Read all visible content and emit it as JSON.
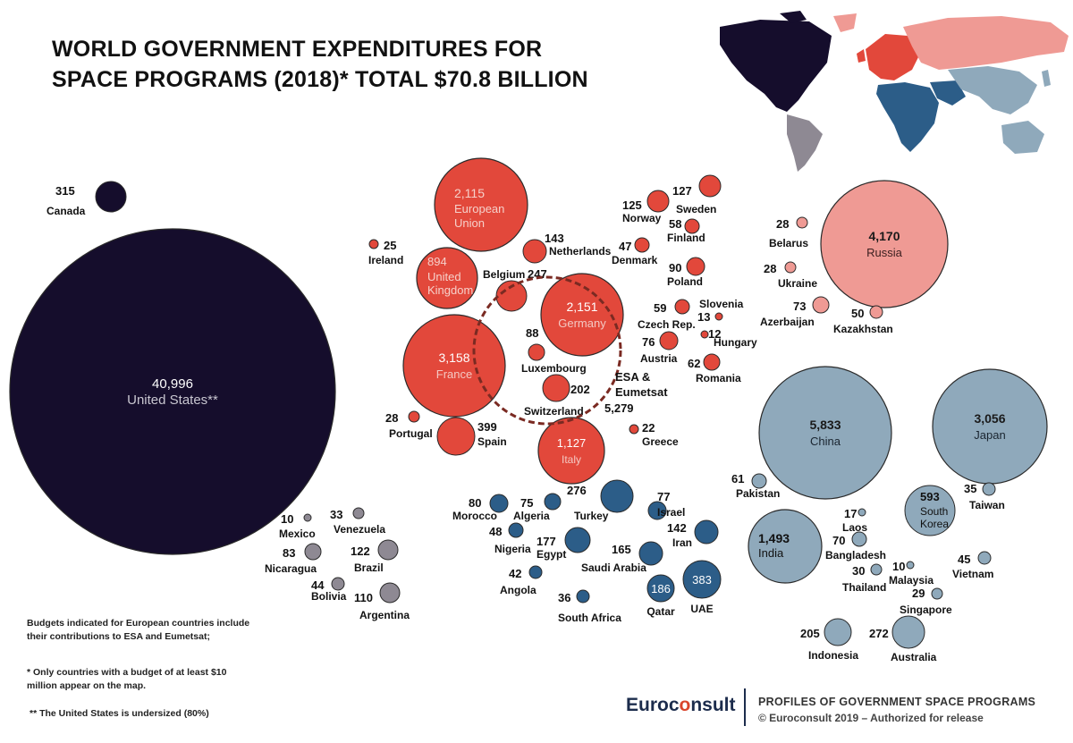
{
  "title_line1": "WORLD GOVERNMENT EXPENDITURES FOR",
  "title_line2": "SPACE PROGRAMS (2018)* TOTAL $70.8 BILLION",
  "colors": {
    "north_america": "#150d2c",
    "europe": "#e2483b",
    "russia_cis": "#ef9a94",
    "middle_east_africa": "#2c5d88",
    "asia_pacific": "#8fa9bb",
    "latin_america": "#8e8993"
  },
  "esa_group": {
    "label_line1": "ESA &",
    "label_line2": "Eumetsat",
    "value": "5,279"
  },
  "chart_data": {
    "type": "bubble",
    "units": "US$ million",
    "title": "WORLD GOVERNMENT EXPENDITURES FOR SPACE PROGRAMS (2018)* TOTAL $70.8 BILLION",
    "points": [
      {
        "name": "United States**",
        "value": 40996,
        "label": "40,996",
        "region": "north_america"
      },
      {
        "name": "Canada",
        "value": 315,
        "label": "315",
        "region": "north_america"
      },
      {
        "name": "European Union",
        "value": 2115,
        "label": "2,115",
        "region": "europe"
      },
      {
        "name": "United Kingdom",
        "value": 894,
        "label": "894",
        "region": "europe"
      },
      {
        "name": "Ireland",
        "value": 25,
        "label": "25",
        "region": "europe"
      },
      {
        "name": "Belgium",
        "value": 247,
        "label": "247",
        "region": "europe"
      },
      {
        "name": "Netherlands",
        "value": 143,
        "label": "143",
        "region": "europe"
      },
      {
        "name": "Germany",
        "value": 2151,
        "label": "2,151",
        "region": "europe"
      },
      {
        "name": "France",
        "value": 3158,
        "label": "3,158",
        "region": "europe"
      },
      {
        "name": "Luxembourg",
        "value": 88,
        "label": "88",
        "region": "europe"
      },
      {
        "name": "Switzerland",
        "value": 202,
        "label": "202",
        "region": "europe"
      },
      {
        "name": "Portugal",
        "value": 28,
        "label": "28",
        "region": "europe"
      },
      {
        "name": "Spain",
        "value": 399,
        "label": "399",
        "region": "europe"
      },
      {
        "name": "Italy",
        "value": 1127,
        "label": "1,127",
        "region": "europe"
      },
      {
        "name": "Greece",
        "value": 22,
        "label": "22",
        "region": "europe"
      },
      {
        "name": "Norway",
        "value": 125,
        "label": "125",
        "region": "europe"
      },
      {
        "name": "Sweden",
        "value": 127,
        "label": "127",
        "region": "europe"
      },
      {
        "name": "Finland",
        "value": 58,
        "label": "58",
        "region": "europe"
      },
      {
        "name": "Denmark",
        "value": 47,
        "label": "47",
        "region": "europe"
      },
      {
        "name": "Poland",
        "value": 90,
        "label": "90",
        "region": "europe"
      },
      {
        "name": "Czech Rep.",
        "value": 59,
        "label": "59",
        "region": "europe"
      },
      {
        "name": "Slovenia",
        "value": 13,
        "label": "13",
        "region": "europe"
      },
      {
        "name": "Hungary",
        "value": 12,
        "label": "12",
        "region": "europe"
      },
      {
        "name": "Austria",
        "value": 76,
        "label": "76",
        "region": "europe"
      },
      {
        "name": "Romania",
        "value": 62,
        "label": "62",
        "region": "europe"
      },
      {
        "name": "Russia",
        "value": 4170,
        "label": "4,170",
        "region": "russia_cis"
      },
      {
        "name": "Belarus",
        "value": 28,
        "label": "28",
        "region": "russia_cis"
      },
      {
        "name": "Ukraine",
        "value": 28,
        "label": "28",
        "region": "russia_cis"
      },
      {
        "name": "Azerbaijan",
        "value": 73,
        "label": "73",
        "region": "russia_cis"
      },
      {
        "name": "Kazakhstan",
        "value": 50,
        "label": "50",
        "region": "russia_cis"
      },
      {
        "name": "China",
        "value": 5833,
        "label": "5,833",
        "region": "asia_pacific"
      },
      {
        "name": "Japan",
        "value": 3056,
        "label": "3,056",
        "region": "asia_pacific"
      },
      {
        "name": "Pakistan",
        "value": 61,
        "label": "61",
        "region": "asia_pacific"
      },
      {
        "name": "South Korea",
        "value": 593,
        "label": "593",
        "region": "asia_pacific"
      },
      {
        "name": "Taiwan",
        "value": 35,
        "label": "35",
        "region": "asia_pacific"
      },
      {
        "name": "India",
        "value": 1493,
        "label": "1,493",
        "region": "asia_pacific"
      },
      {
        "name": "Laos",
        "value": 17,
        "label": "17",
        "region": "asia_pacific"
      },
      {
        "name": "Bangladesh",
        "value": 70,
        "label": "70",
        "region": "asia_pacific"
      },
      {
        "name": "Malaysia",
        "value": 10,
        "label": "10",
        "region": "asia_pacific"
      },
      {
        "name": "Thailand",
        "value": 30,
        "label": "30",
        "region": "asia_pacific"
      },
      {
        "name": "Vietnam",
        "value": 45,
        "label": "45",
        "region": "asia_pacific"
      },
      {
        "name": "Singapore",
        "value": 29,
        "label": "29",
        "region": "asia_pacific"
      },
      {
        "name": "Indonesia",
        "value": 205,
        "label": "205",
        "region": "asia_pacific"
      },
      {
        "name": "Australia",
        "value": 272,
        "label": "272",
        "region": "asia_pacific"
      },
      {
        "name": "Morocco",
        "value": 80,
        "label": "80",
        "region": "middle_east_africa"
      },
      {
        "name": "Algeria",
        "value": 75,
        "label": "75",
        "region": "middle_east_africa"
      },
      {
        "name": "Turkey",
        "value": 276,
        "label": "276",
        "region": "middle_east_africa"
      },
      {
        "name": "Israel",
        "value": 77,
        "label": "77",
        "region": "middle_east_africa"
      },
      {
        "name": "Nigeria",
        "value": 48,
        "label": "48",
        "region": "middle_east_africa"
      },
      {
        "name": "Egypt",
        "value": 177,
        "label": "177",
        "region": "middle_east_africa"
      },
      {
        "name": "Iran",
        "value": 142,
        "label": "142",
        "region": "middle_east_africa"
      },
      {
        "name": "Saudi Arabia",
        "value": 165,
        "label": "165",
        "region": "middle_east_africa"
      },
      {
        "name": "Angola",
        "value": 42,
        "label": "42",
        "region": "middle_east_africa"
      },
      {
        "name": "Qatar",
        "value": 186,
        "label": "186",
        "region": "middle_east_africa"
      },
      {
        "name": "UAE",
        "value": 383,
        "label": "383",
        "region": "middle_east_africa"
      },
      {
        "name": "South Africa",
        "value": 36,
        "label": "36",
        "region": "middle_east_africa"
      },
      {
        "name": "Mexico",
        "value": 10,
        "label": "10",
        "region": "latin_america"
      },
      {
        "name": "Venezuela",
        "value": 33,
        "label": "33",
        "region": "latin_america"
      },
      {
        "name": "Nicaragua",
        "value": 83,
        "label": "83",
        "region": "latin_america"
      },
      {
        "name": "Brazil",
        "value": 122,
        "label": "122",
        "region": "latin_america"
      },
      {
        "name": "Bolivia",
        "value": 44,
        "label": "44",
        "region": "latin_america"
      },
      {
        "name": "Argentina",
        "value": 110,
        "label": "110",
        "region": "latin_america"
      }
    ]
  },
  "notes": {
    "european_1": "Budgets indicated for European countries include",
    "european_2": "their contributions to ESA and Eumetsat;",
    "threshold_1": "* Only countries with a budget of at least  $10",
    "threshold_2": "million  appear on the map.",
    "us_undersized": "** The United States is undersized (80%)"
  },
  "footer": {
    "brand_before": "Euroc",
    "brand_o": "o",
    "brand_after": "nsult",
    "title": "PROFILES OF GOVERNMENT SPACE PROGRAMS",
    "copyright": "© Euroconsult 2019 – Authorized for release"
  }
}
